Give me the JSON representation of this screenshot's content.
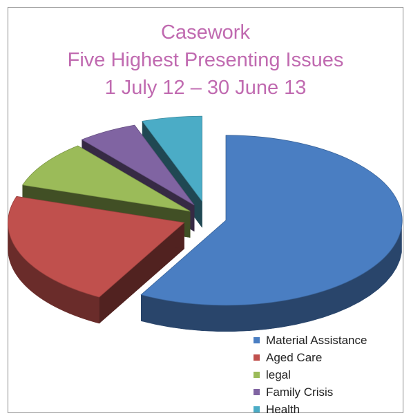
{
  "chart_data": {
    "type": "pie",
    "title_lines": [
      "Casework",
      "Five Highest Presenting Issues",
      "1 July 12 – 30 June 13"
    ],
    "slices": [
      {
        "label": "Material Assistance",
        "value": 58,
        "color": "#4a7ec2"
      },
      {
        "label": "Aged Care",
        "value": 22,
        "color": "#c0504d"
      },
      {
        "label": "legal",
        "value": 9,
        "color": "#9bbb59"
      },
      {
        "label": "Family Crisis",
        "value": 5.5,
        "color": "#8064a2"
      },
      {
        "label": "Health",
        "value": 5.5,
        "color": "#4bacc6"
      }
    ],
    "exploded": true,
    "three_d": true,
    "legend_position": "bottom-right"
  }
}
